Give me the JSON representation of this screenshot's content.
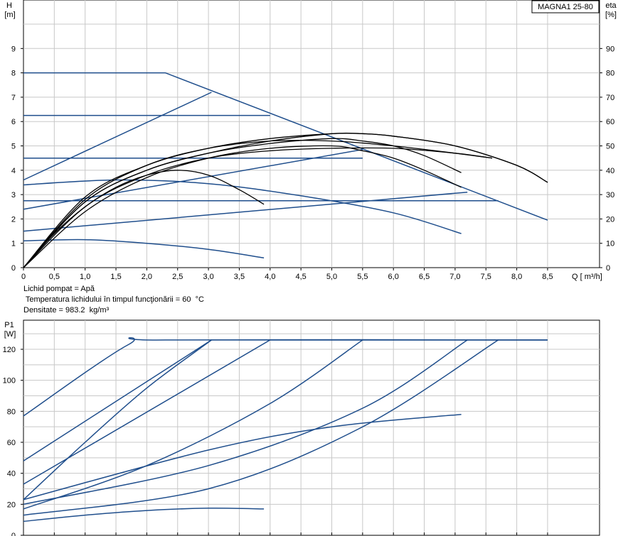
{
  "chart_data": [
    {
      "type": "line",
      "model_label": "MAGNA1 25-80",
      "ylabel_left": "H",
      "ylabel_left_unit": "[m]",
      "ylabel_right": "eta",
      "ylabel_right_unit": "[%]",
      "xlabel": "Q [ m³/h]",
      "xlim": [
        0,
        8.5
      ],
      "ylim": [
        0,
        10
      ],
      "ylim_right": [
        0,
        100
      ],
      "x_ticks": [
        "0",
        "0,5",
        "1,0",
        "1,5",
        "2,0",
        "2,5",
        "3,0",
        "3,5",
        "4,0",
        "4,5",
        "5,0",
        "5,5",
        "6,0",
        "6,5",
        "7,0",
        "7,5",
        "8,0",
        "8,5"
      ],
      "y_ticks": [
        "0",
        "1",
        "2",
        "3",
        "4",
        "5",
        "6",
        "7",
        "8",
        "9"
      ],
      "y_ticks_right": [
        "0",
        "10",
        "20",
        "30",
        "40",
        "50",
        "60",
        "70",
        "80",
        "90"
      ],
      "grid": true,
      "head_series": [
        {
          "x": [
            0,
            2.3,
            8.5
          ],
          "y": [
            8.0,
            8.0,
            1.95
          ]
        },
        {
          "x": [
            0,
            3.05
          ],
          "y": [
            3.6,
            7.2
          ]
        },
        {
          "x": [
            0,
            4.0
          ],
          "y": [
            6.25,
            6.25
          ]
        },
        {
          "x": [
            0,
            5.5
          ],
          "y": [
            4.5,
            4.5
          ]
        },
        {
          "x": [
            0,
            5.5
          ],
          "y": [
            2.4,
            4.85
          ]
        },
        {
          "x": [
            0,
            7.7
          ],
          "y": [
            2.75,
            2.75
          ]
        },
        {
          "x": [
            0,
            7.2
          ],
          "y": [
            1.5,
            3.1
          ]
        },
        {
          "x": [
            0,
            1.5,
            3.0,
            4.5,
            6.0,
            7.1
          ],
          "y": [
            3.4,
            3.6,
            3.45,
            2.95,
            2.25,
            1.4
          ]
        },
        {
          "x": [
            0,
            1.0,
            2.0,
            3.0,
            3.9
          ],
          "y": [
            1.1,
            1.15,
            1.0,
            0.75,
            0.4
          ]
        }
      ],
      "efficiency_series": [
        {
          "x": [
            0,
            0.5,
            1.0,
            1.5,
            2.0,
            2.5,
            3.0,
            3.5,
            3.9
          ],
          "y": [
            0,
            14,
            25,
            33,
            38,
            40,
            38,
            32,
            26
          ]
        },
        {
          "x": [
            0,
            1.0,
            2.0,
            3.0,
            4.0,
            5.0,
            5.5,
            6.0,
            6.5,
            7.1
          ],
          "y": [
            0,
            23,
            37,
            45,
            49,
            50,
            48,
            45,
            40,
            33
          ]
        },
        {
          "x": [
            0,
            1.0,
            2.0,
            3.0,
            4.0,
            5.0,
            5.5,
            6.0,
            6.5,
            7.1
          ],
          "y": [
            0,
            27,
            40,
            47,
            51,
            53,
            52,
            50,
            46,
            39
          ]
        },
        {
          "x": [
            0,
            1.0,
            2.0,
            3.0,
            4.0,
            5.0,
            6.0,
            7.0,
            7.6
          ],
          "y": [
            0,
            25,
            38,
            45,
            48,
            49,
            49,
            47,
            45
          ]
        },
        {
          "x": [
            0,
            1.0,
            2.0,
            3.0,
            4.0,
            5.0,
            6.0,
            7.0,
            7.6
          ],
          "y": [
            0,
            28,
            42,
            49,
            52,
            52,
            50,
            47,
            45
          ]
        },
        {
          "x": [
            0,
            1.0,
            2.0,
            3.0,
            4.0,
            5.0,
            5.5,
            6.0,
            7.0,
            8.0,
            8.5
          ],
          "y": [
            0,
            29,
            42,
            49,
            53,
            55,
            55,
            54,
            50,
            42,
            35
          ]
        },
        {
          "x": [
            0,
            1.0,
            2.0,
            3.0,
            4.0,
            5.0,
            5.5,
            6.0,
            7.0,
            8.0,
            8.5
          ],
          "y": [
            0,
            27,
            40,
            47,
            52,
            55,
            55,
            54,
            50,
            42,
            35
          ]
        }
      ]
    },
    {
      "type": "line",
      "ylabel": "P1",
      "ylabel_unit": "[W]",
      "xlim": [
        0,
        8.5
      ],
      "ylim": [
        0,
        140
      ],
      "y_ticks": [
        "0",
        "20",
        "40",
        "60",
        "80",
        "100",
        "120"
      ],
      "grid": true,
      "series": [
        {
          "x": [
            0,
            1.7,
            2.3,
            8.5
          ],
          "y": [
            77,
            123,
            126,
            126
          ]
        },
        {
          "x": [
            0,
            3.05,
            8.5
          ],
          "y": [
            48,
            126,
            126
          ]
        },
        {
          "x": [
            0,
            4.0,
            8.5
          ],
          "y": [
            33,
            126,
            126
          ]
        },
        {
          "x": [
            0,
            1.0,
            2.0,
            3.05
          ],
          "y": [
            23,
            60,
            95,
            126
          ]
        },
        {
          "x": [
            0,
            2.0,
            4.0,
            5.5
          ],
          "y": [
            17,
            45,
            85,
            126
          ]
        },
        {
          "x": [
            0,
            3.0,
            5.5,
            7.2
          ],
          "y": [
            20,
            45,
            82,
            126
          ]
        },
        {
          "x": [
            0,
            3.0,
            5.5,
            7.7
          ],
          "y": [
            13,
            30,
            70,
            126
          ]
        },
        {
          "x": [
            0,
            3.0,
            5.0,
            7.1
          ],
          "y": [
            23,
            55,
            70,
            78
          ]
        },
        {
          "x": [
            0,
            1.0,
            2.0,
            3.0,
            3.9
          ],
          "y": [
            9,
            13,
            16,
            17.5,
            17
          ]
        }
      ]
    }
  ],
  "info": {
    "line1": "Lichid pompat = Apă",
    "line2": " Temperatura lichidului în timpul funcţionării = 60  °C",
    "line3": "Densitate = 983.2  kg/m³"
  },
  "colors": {
    "blue": "#1f4e8c",
    "black": "#000000",
    "grid": "#c8c8c8",
    "frame": "#000000"
  }
}
